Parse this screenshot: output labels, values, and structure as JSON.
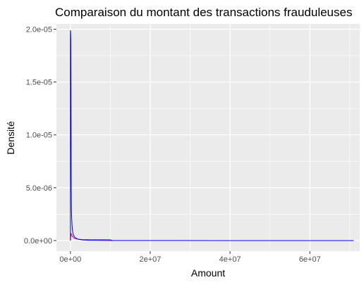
{
  "chart_data": {
    "type": "area",
    "title": "Comparaison du montant des transactions frauduleuses",
    "xlabel": "Amount",
    "ylabel": "Densité",
    "xlim": [
      -3500000,
      72500000
    ],
    "ylim": [
      -1e-06,
      2.05e-05
    ],
    "x_ticks": [
      0,
      20000000,
      40000000,
      60000000
    ],
    "x_tick_labels": [
      "0e+00",
      "2e+07",
      "4e+07",
      "6e+07"
    ],
    "y_ticks": [
      0,
      5e-06,
      1e-05,
      1.5e-05,
      2e-05
    ],
    "y_tick_labels": [
      "0.0e+00",
      "5.0e-06",
      "1.0e-05",
      "1.5e-05",
      "2.0e-05"
    ],
    "grid": true,
    "background": "#ebebeb",
    "series": [
      {
        "color": "#0000ff",
        "x": [
          0,
          50000,
          100000,
          150000,
          200000,
          250000,
          300000,
          400000,
          500000,
          700000,
          1000000,
          1500000,
          2000000,
          3000000,
          5000000,
          10000000,
          20000000,
          40000000,
          71000000
        ],
        "y": [
          1.99e-05,
          1.97e-05,
          1.9e-05,
          1.3e-05,
          6e-06,
          3.2e-06,
          2.3e-06,
          1.5e-06,
          1e-06,
          6e-07,
          3.5e-07,
          2e-07,
          1.2e-07,
          6e-08,
          2.5e-08,
          1e-08,
          4e-09,
          1e-09,
          0
        ]
      },
      {
        "color": "#cc0088",
        "x": [
          0,
          200000,
          500000,
          1000000,
          2000000,
          3000000,
          4000000,
          5000000,
          6000000,
          7000000,
          8000000,
          9000000,
          10000000,
          10500000
        ],
        "y": [
          2e-07,
          6.5e-07,
          4e-07,
          2e-07,
          1.2e-07,
          1e-07,
          9e-08,
          8.5e-08,
          8e-08,
          8e-08,
          8e-08,
          8e-08,
          7.5e-08,
          0
        ]
      }
    ]
  }
}
